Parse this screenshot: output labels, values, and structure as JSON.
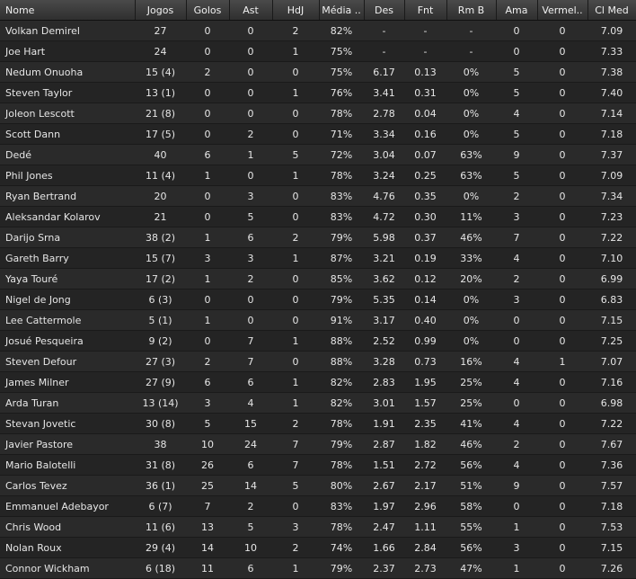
{
  "columns": [
    "Nome",
    "Jogos",
    "Golos",
    "Ast",
    "HdJ",
    "Média ..",
    "Des",
    "Fnt",
    "Rm B",
    "Ama",
    "Vermel..",
    "Cl Med"
  ],
  "rows": [
    [
      "Volkan Demirel",
      "27",
      "0",
      "0",
      "2",
      "82%",
      "-",
      "-",
      "-",
      "0",
      "0",
      "7.09"
    ],
    [
      "Joe Hart",
      "24",
      "0",
      "0",
      "1",
      "75%",
      "-",
      "-",
      "-",
      "0",
      "0",
      "7.33"
    ],
    [
      "Nedum Onuoha",
      "15 (4)",
      "2",
      "0",
      "0",
      "75%",
      "6.17",
      "0.13",
      "0%",
      "5",
      "0",
      "7.38"
    ],
    [
      "Steven Taylor",
      "13 (1)",
      "0",
      "0",
      "1",
      "76%",
      "3.41",
      "0.31",
      "0%",
      "5",
      "0",
      "7.40"
    ],
    [
      "Joleon Lescott",
      "21 (8)",
      "0",
      "0",
      "0",
      "78%",
      "2.78",
      "0.04",
      "0%",
      "4",
      "0",
      "7.14"
    ],
    [
      "Scott Dann",
      "17 (5)",
      "0",
      "2",
      "0",
      "71%",
      "3.34",
      "0.16",
      "0%",
      "5",
      "0",
      "7.18"
    ],
    [
      "Dedé",
      "40",
      "6",
      "1",
      "5",
      "72%",
      "3.04",
      "0.07",
      "63%",
      "9",
      "0",
      "7.37"
    ],
    [
      "Phil Jones",
      "11 (4)",
      "1",
      "0",
      "1",
      "78%",
      "3.24",
      "0.25",
      "63%",
      "5",
      "0",
      "7.09"
    ],
    [
      "Ryan Bertrand",
      "20",
      "0",
      "3",
      "0",
      "83%",
      "4.76",
      "0.35",
      "0%",
      "2",
      "0",
      "7.34"
    ],
    [
      "Aleksandar Kolarov",
      "21",
      "0",
      "5",
      "0",
      "83%",
      "4.72",
      "0.30",
      "11%",
      "3",
      "0",
      "7.23"
    ],
    [
      "Darijo Srna",
      "38 (2)",
      "1",
      "6",
      "2",
      "79%",
      "5.98",
      "0.37",
      "46%",
      "7",
      "0",
      "7.22"
    ],
    [
      "Gareth Barry",
      "15 (7)",
      "3",
      "3",
      "1",
      "87%",
      "3.21",
      "0.19",
      "33%",
      "4",
      "0",
      "7.10"
    ],
    [
      "Yaya Touré",
      "17 (2)",
      "1",
      "2",
      "0",
      "85%",
      "3.62",
      "0.12",
      "20%",
      "2",
      "0",
      "6.99"
    ],
    [
      "Nigel de Jong",
      "6 (3)",
      "0",
      "0",
      "0",
      "79%",
      "5.35",
      "0.14",
      "0%",
      "3",
      "0",
      "6.83"
    ],
    [
      "Lee Cattermole",
      "5 (1)",
      "1",
      "0",
      "0",
      "91%",
      "3.17",
      "0.40",
      "0%",
      "0",
      "0",
      "7.15"
    ],
    [
      "Josué Pesqueira",
      "9 (2)",
      "0",
      "7",
      "1",
      "88%",
      "2.52",
      "0.99",
      "0%",
      "0",
      "0",
      "7.25"
    ],
    [
      "Steven Defour",
      "27 (3)",
      "2",
      "7",
      "0",
      "88%",
      "3.28",
      "0.73",
      "16%",
      "4",
      "1",
      "7.07"
    ],
    [
      "James Milner",
      "27 (9)",
      "6",
      "6",
      "1",
      "82%",
      "2.83",
      "1.95",
      "25%",
      "4",
      "0",
      "7.16"
    ],
    [
      "Arda Turan",
      "13 (14)",
      "3",
      "4",
      "1",
      "82%",
      "3.01",
      "1.57",
      "25%",
      "0",
      "0",
      "6.98"
    ],
    [
      "Stevan Jovetic",
      "30 (8)",
      "5",
      "15",
      "2",
      "78%",
      "1.91",
      "2.35",
      "41%",
      "4",
      "0",
      "7.22"
    ],
    [
      "Javier Pastore",
      "38",
      "10",
      "24",
      "7",
      "79%",
      "2.87",
      "1.82",
      "46%",
      "2",
      "0",
      "7.67"
    ],
    [
      "Mario Balotelli",
      "31 (8)",
      "26",
      "6",
      "7",
      "78%",
      "1.51",
      "2.72",
      "56%",
      "4",
      "0",
      "7.36"
    ],
    [
      "Carlos Tevez",
      "36 (1)",
      "25",
      "14",
      "5",
      "80%",
      "2.67",
      "2.17",
      "51%",
      "9",
      "0",
      "7.57"
    ],
    [
      "Emmanuel Adebayor",
      "6 (7)",
      "7",
      "2",
      "0",
      "83%",
      "1.97",
      "2.96",
      "58%",
      "0",
      "0",
      "7.18"
    ],
    [
      "Chris Wood",
      "11 (6)",
      "13",
      "5",
      "3",
      "78%",
      "2.47",
      "1.11",
      "55%",
      "1",
      "0",
      "7.53"
    ],
    [
      "Nolan Roux",
      "29 (4)",
      "14",
      "10",
      "2",
      "74%",
      "1.66",
      "2.84",
      "56%",
      "3",
      "0",
      "7.15"
    ],
    [
      "Connor Wickham",
      "6 (18)",
      "11",
      "6",
      "1",
      "79%",
      "2.37",
      "2.73",
      "47%",
      "1",
      "0",
      "7.26"
    ]
  ]
}
